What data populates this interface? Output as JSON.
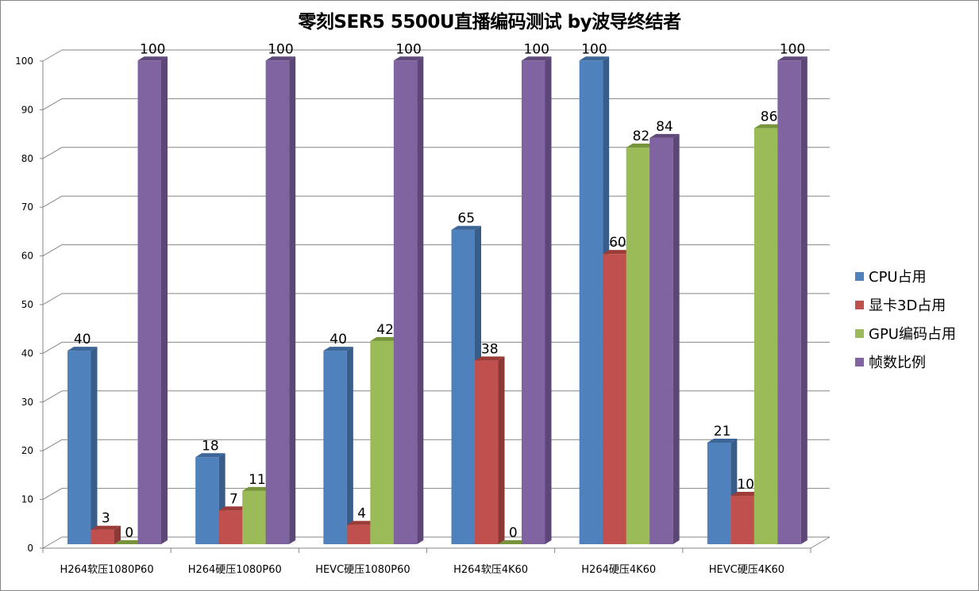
{
  "chart_data": {
    "type": "bar",
    "style": "3d-clustered-column",
    "title": "零刻SER5 5500U直播编码测试 by波导终结者",
    "xlabel": "",
    "ylabel": "",
    "ylim": [
      0,
      100
    ],
    "yticks": [
      0,
      10,
      20,
      30,
      40,
      50,
      60,
      70,
      80,
      90,
      100
    ],
    "grid": true,
    "legend_position": "right",
    "categories": [
      "H264软压1080P60",
      "H264硬压1080P60",
      "HEVC硬压1080P60",
      "H264软压4K60",
      "H264硬压4K60",
      "HEVC硬压4K60"
    ],
    "series": [
      {
        "name": "CPU占用",
        "color": "#4f81bd",
        "side": "#385d8a",
        "top": "#3c6697",
        "values": [
          40,
          18,
          40,
          65,
          100,
          21
        ]
      },
      {
        "name": "显卡3D占用",
        "color": "#c0504d",
        "side": "#8c3836",
        "top": "#9b3c39",
        "values": [
          3,
          7,
          4,
          38,
          60,
          10
        ]
      },
      {
        "name": "GPU编码占用",
        "color": "#9bbb59",
        "side": "#71893f",
        "top": "#77933c",
        "values": [
          0,
          11,
          42,
          0,
          82,
          86
        ]
      },
      {
        "name": "帧数比例",
        "color": "#8064a2",
        "side": "#5c4776",
        "top": "#604a7b",
        "values": [
          100,
          100,
          100,
          100,
          84,
          100
        ]
      }
    ],
    "data_labels": true
  }
}
